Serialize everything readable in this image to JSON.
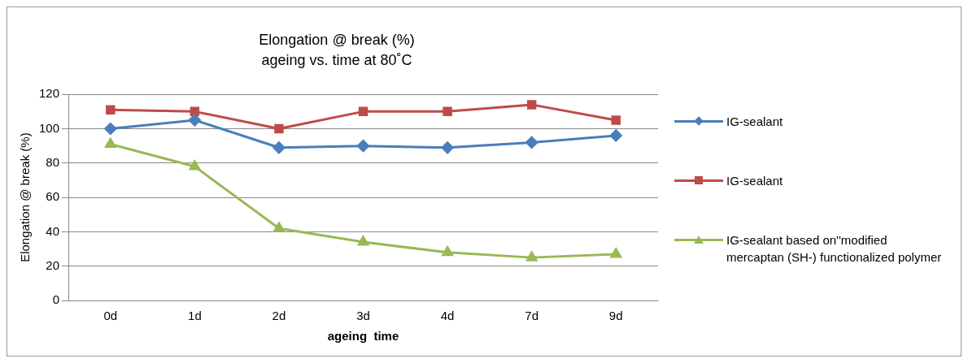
{
  "chart_data": {
    "type": "line",
    "title": "Elongation @ break (%)",
    "subtitle": "ageing vs. time at 80˚C",
    "xlabel": "ageing  time",
    "ylabel": "Elongation @ break (%)",
    "categories": [
      "0d",
      "1d",
      "2d",
      "3d",
      "4d",
      "7d",
      "9d"
    ],
    "ylim": [
      0,
      120
    ],
    "yticks": [
      0,
      20,
      40,
      60,
      80,
      100,
      120
    ],
    "grid": "y",
    "legend": "right",
    "line_style": "solid",
    "series": [
      {
        "name": "IG-sealant",
        "color": "#4a7ebb",
        "marker": "diamond",
        "values": [
          100,
          105,
          89,
          90,
          89,
          92,
          96
        ]
      },
      {
        "name": "IG-sealant",
        "color": "#be4b48",
        "marker": "square",
        "values": [
          111,
          110,
          100,
          110,
          110,
          114,
          105
        ]
      },
      {
        "name": "IG-sealant based on''modified mercaptan (SH-) functionalized polymer",
        "color": "#98b954",
        "marker": "triangle",
        "values": [
          91,
          78,
          42,
          34,
          28,
          25,
          27
        ]
      }
    ]
  }
}
